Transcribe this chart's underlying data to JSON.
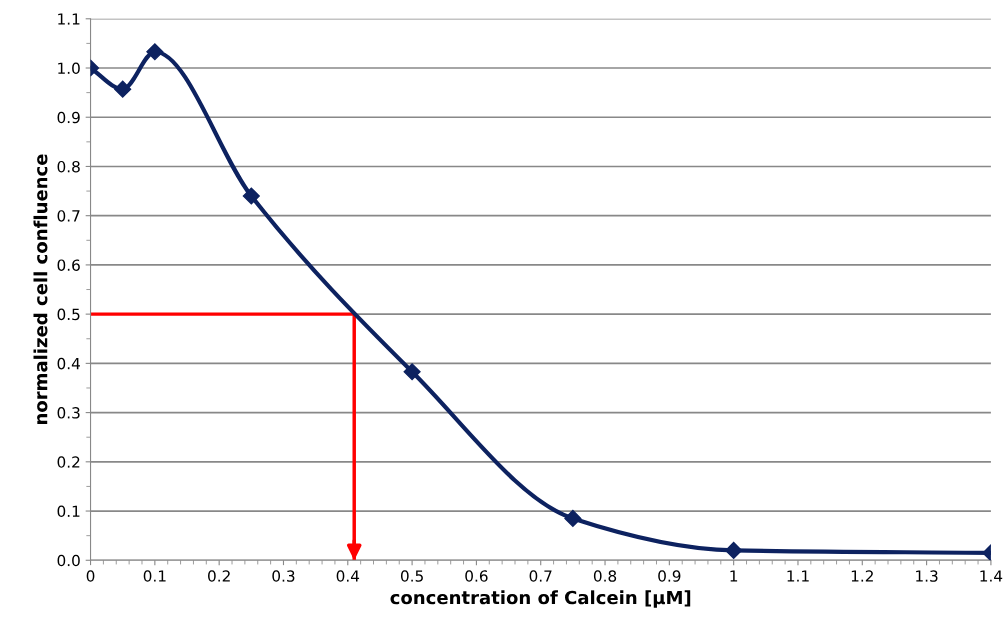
{
  "chart_data": {
    "type": "line",
    "xlabel": "concentration of Calcein [µM]",
    "ylabel": "normalized cell confluence",
    "xlim": [
      0,
      1.4
    ],
    "xticks": [
      0,
      0.1,
      0.2,
      0.3,
      0.4,
      0.5,
      0.6,
      0.7,
      0.8,
      0.9,
      1,
      1.1,
      1.2,
      1.3,
      1.4
    ],
    "ylim": [
      0,
      1.1
    ],
    "yticks": [
      {
        "value": 0,
        "label": "0.0"
      },
      0.1,
      0.2,
      0.3,
      0.4,
      0.5,
      0.6,
      0.7,
      0.8,
      0.9,
      {
        "value": 1,
        "label": "1.0"
      },
      1.1
    ],
    "grid": "y",
    "marker": "diamond",
    "line_style": "solid",
    "legend": false,
    "series": [
      {
        "color": "#0d2260",
        "x": [
          0,
          0.05,
          0.1,
          0.25,
          0.5,
          0.75,
          1,
          1.4
        ],
        "values": [
          1.0,
          0.957,
          1.033,
          0.74,
          0.383,
          0.085,
          0.02,
          0.015
        ]
      }
    ],
    "ref_lines": [
      {
        "axis": "y",
        "value": 0.5,
        "color": "#ff0000"
      },
      {
        "axis": "x",
        "value": 0.41,
        "color": "#ff0000"
      }
    ]
  }
}
